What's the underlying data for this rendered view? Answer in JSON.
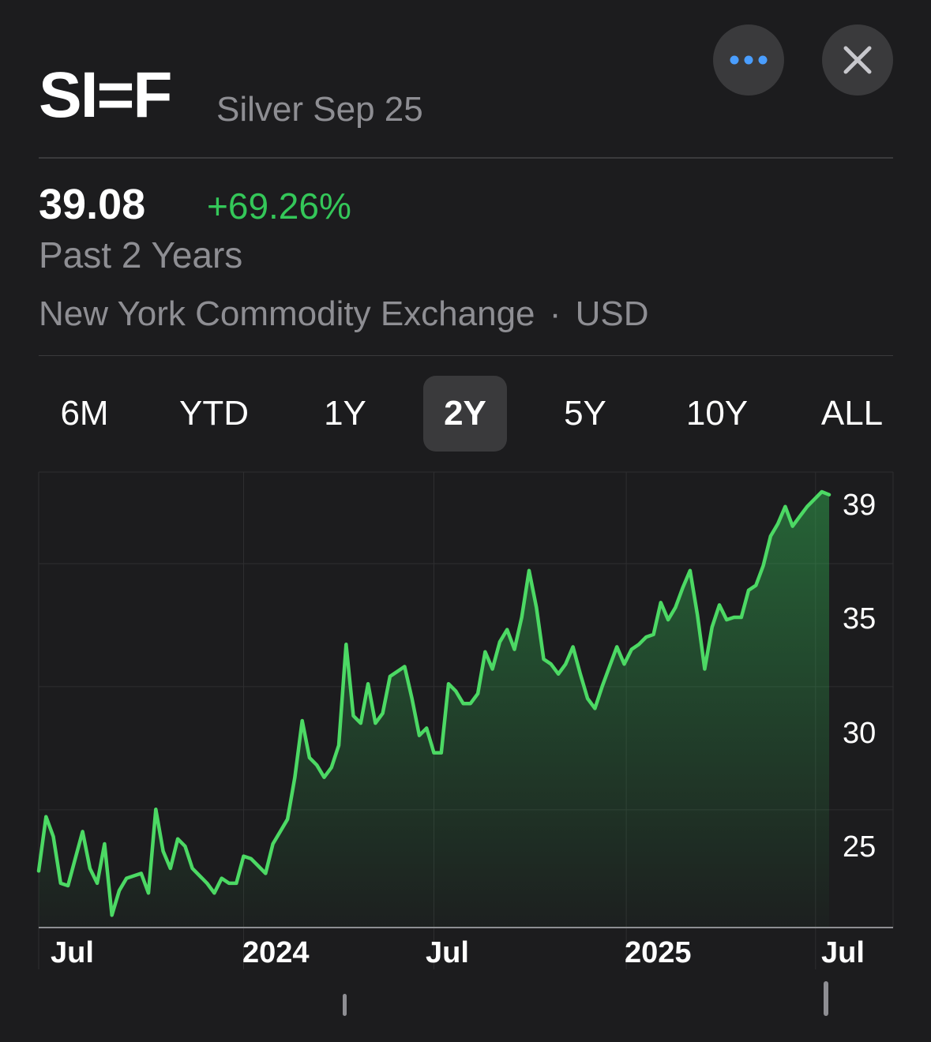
{
  "header": {
    "symbol": "SI=F",
    "name": "Silver Sep 25",
    "more_icon": "ellipsis-icon",
    "close_icon": "close-icon",
    "accent_color": "#4a9eff"
  },
  "quote": {
    "price": "39.08",
    "change": "+69.26%",
    "period": "Past 2 Years",
    "exchange": "New York Commodity Exchange",
    "separator": "·",
    "currency": "USD",
    "change_color": "#34c759"
  },
  "ranges": {
    "items": [
      "6M",
      "YTD",
      "1Y",
      "2Y",
      "5Y",
      "10Y",
      "ALL"
    ],
    "selected": "2Y"
  },
  "chart_data": {
    "type": "area",
    "title": "",
    "xlabel": "",
    "ylabel": "",
    "ylim": [
      21.5,
      40.0
    ],
    "grid": true,
    "y_ticks": [
      39,
      35,
      30,
      25
    ],
    "x_ticks": [
      "Jul",
      "2024",
      "Jul",
      "2025",
      "Jul"
    ],
    "line_color": "#4cd964",
    "series": [
      {
        "x": [
          "2023-06-19",
          "2023-06-26",
          "2023-07-03",
          "2023-07-10",
          "2023-07-17",
          "2023-07-24",
          "2023-07-31",
          "2023-08-07",
          "2023-08-14",
          "2023-08-21",
          "2023-08-28",
          "2023-09-04",
          "2023-09-11",
          "2023-09-18",
          "2023-09-25",
          "2023-10-02",
          "2023-10-09",
          "2023-10-16",
          "2023-10-23",
          "2023-10-30",
          "2023-11-06",
          "2023-11-13",
          "2023-11-20",
          "2023-11-27",
          "2023-12-04",
          "2023-12-11",
          "2023-12-18",
          "2023-12-25",
          "2024-01-01",
          "2024-01-08",
          "2024-01-15",
          "2024-01-22",
          "2024-01-29",
          "2024-02-05",
          "2024-02-12",
          "2024-02-19",
          "2024-02-26",
          "2024-03-04",
          "2024-03-11",
          "2024-03-18",
          "2024-03-25",
          "2024-04-01",
          "2024-04-08",
          "2024-04-15",
          "2024-04-22",
          "2024-04-29",
          "2024-05-06",
          "2024-05-13",
          "2024-05-20",
          "2024-05-27",
          "2024-06-03",
          "2024-06-10",
          "2024-06-17",
          "2024-06-24",
          "2024-07-01",
          "2024-07-08",
          "2024-07-15",
          "2024-07-22",
          "2024-07-29",
          "2024-08-05",
          "2024-08-12",
          "2024-08-19",
          "2024-08-26",
          "2024-09-02",
          "2024-09-09",
          "2024-09-16",
          "2024-09-23",
          "2024-09-30",
          "2024-10-07",
          "2024-10-14",
          "2024-10-21",
          "2024-10-28",
          "2024-11-04",
          "2024-11-11",
          "2024-11-18",
          "2024-11-25",
          "2024-12-02",
          "2024-12-09",
          "2024-12-16",
          "2024-12-23",
          "2024-12-30",
          "2025-01-06",
          "2025-01-13",
          "2025-01-20",
          "2025-01-27",
          "2025-02-03",
          "2025-02-10",
          "2025-02-17",
          "2025-02-24",
          "2025-03-03",
          "2025-03-10",
          "2025-03-17",
          "2025-03-24",
          "2025-03-31",
          "2025-04-07",
          "2025-04-14",
          "2025-04-21",
          "2025-04-28",
          "2025-05-05",
          "2025-05-12",
          "2025-05-19",
          "2025-05-26",
          "2025-06-02",
          "2025-06-09",
          "2025-06-16",
          "2025-06-23",
          "2025-06-30",
          "2025-07-07",
          "2025-07-14"
        ],
        "values": [
          23.8,
          26.0,
          25.2,
          23.3,
          23.2,
          24.3,
          25.4,
          23.9,
          23.3,
          24.9,
          22.0,
          23.0,
          23.5,
          23.6,
          23.7,
          22.9,
          26.3,
          24.6,
          23.9,
          25.1,
          24.8,
          23.9,
          23.6,
          23.3,
          22.9,
          23.5,
          23.3,
          23.3,
          24.4,
          24.3,
          24.0,
          23.7,
          24.9,
          25.4,
          25.9,
          27.6,
          29.9,
          28.4,
          28.1,
          27.6,
          28.0,
          28.9,
          33.0,
          30.1,
          29.8,
          31.4,
          29.8,
          30.2,
          31.7,
          31.9,
          32.1,
          30.8,
          29.3,
          29.6,
          28.6,
          28.6,
          31.4,
          31.1,
          30.6,
          30.6,
          31.0,
          32.7,
          32.0,
          33.1,
          33.6,
          32.8,
          34.1,
          36.0,
          34.5,
          32.4,
          32.2,
          31.8,
          32.2,
          32.9,
          31.8,
          30.8,
          30.4,
          31.3,
          32.1,
          32.9,
          32.2,
          32.8,
          33.0,
          33.3,
          33.4,
          34.7,
          34.0,
          34.5,
          35.3,
          36.0,
          34.2,
          32.0,
          33.7,
          34.6,
          34.0,
          34.1,
          34.1,
          35.2,
          35.4,
          36.2,
          37.4,
          37.9,
          38.6,
          37.8,
          38.2,
          38.6,
          38.9,
          39.2,
          39.08
        ]
      }
    ]
  }
}
